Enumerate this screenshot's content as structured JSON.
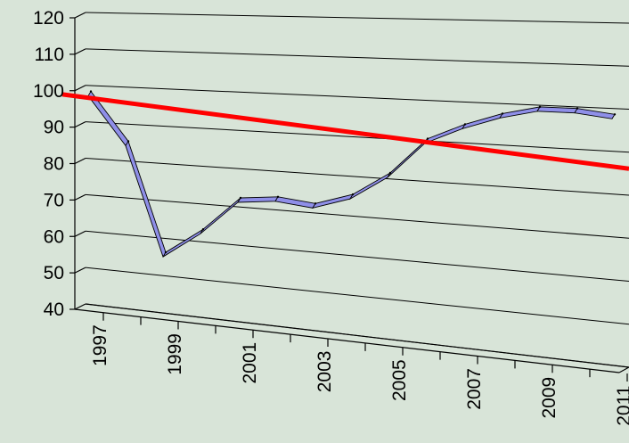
{
  "chart_data": {
    "type": "line",
    "title": "",
    "xlabel": "",
    "ylabel": "",
    "ylim": [
      40,
      120
    ],
    "y_ticks": [
      40,
      50,
      60,
      70,
      80,
      90,
      100,
      110,
      120
    ],
    "x": [
      1997,
      1998,
      1999,
      2000,
      2001,
      2002,
      2003,
      2004,
      2005,
      2006,
      2007,
      2008,
      2009,
      2010,
      2011
    ],
    "x_tick_labels": [
      "1997",
      "1999",
      "2001",
      "2003",
      "2005",
      "2007",
      "2009",
      "2011"
    ],
    "grid": true,
    "legend": "none",
    "style": "3d-ribbon",
    "series": [
      {
        "values": [
          100,
          87,
          58,
          65,
          74,
          75,
          74,
          77,
          83,
          92,
          96,
          99,
          101,
          101,
          100
        ],
        "color": "#8f8fe8"
      }
    ],
    "reference_line": {
      "start": 98.5,
      "end": 92.5,
      "color": "#ff0000"
    }
  }
}
